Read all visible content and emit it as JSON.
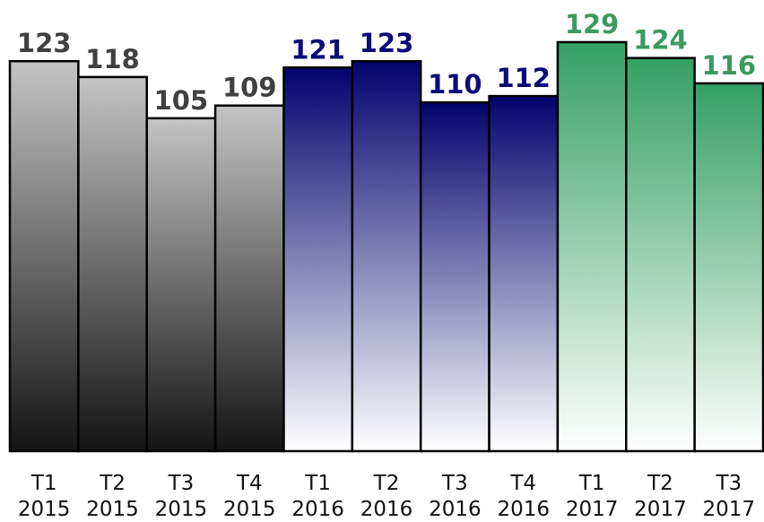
{
  "chart_data": {
    "type": "bar",
    "title": "",
    "xlabel": "",
    "ylabel": "",
    "ylim": [
      0,
      129
    ],
    "grid": false,
    "legend": "none",
    "categories": [
      [
        "T1",
        "2015"
      ],
      [
        "T2",
        "2015"
      ],
      [
        "T3",
        "2015"
      ],
      [
        "T4",
        "2015"
      ],
      [
        "T1",
        "2016"
      ],
      [
        "T2",
        "2016"
      ],
      [
        "T3",
        "2016"
      ],
      [
        "T4",
        "2016"
      ],
      [
        "T1",
        "2017"
      ],
      [
        "T2",
        "2017"
      ],
      [
        "T3",
        "2017"
      ]
    ],
    "values": [
      123,
      118,
      105,
      109,
      121,
      123,
      110,
      112,
      129,
      124,
      116
    ],
    "year_groups": [
      {
        "year": "2015",
        "start": 0,
        "end": 3,
        "label_color": "#404040",
        "gradient_top": "#c4c4c4",
        "gradient_bottom": "#141414"
      },
      {
        "year": "2016",
        "start": 4,
        "end": 7,
        "label_color": "#0b0b7a",
        "gradient_top": "#03036e",
        "gradient_bottom": "#ffffff"
      },
      {
        "year": "2017",
        "start": 8,
        "end": 10,
        "label_color": "#3c9a5f",
        "gradient_top": "#35a064",
        "gradient_bottom": "#ffffff"
      }
    ]
  }
}
